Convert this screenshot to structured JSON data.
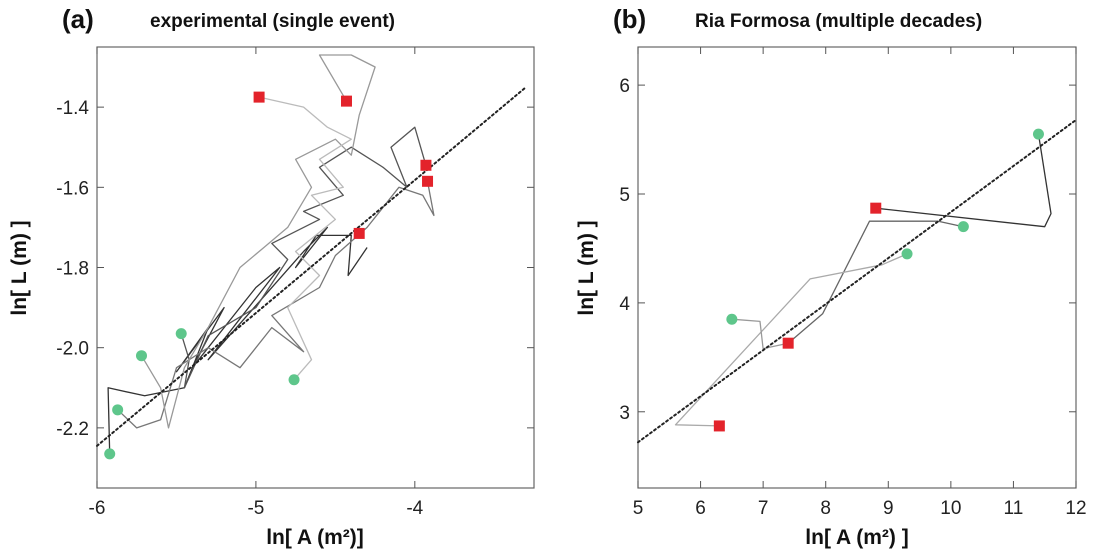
{
  "chart_data": [
    {
      "type": "scatter",
      "panel_label": "(a)",
      "title": "experimental (single event)",
      "xlabel": "ln[ A (m²)]",
      "ylabel": "ln[ L (m) ]",
      "xlim": [
        -6.0,
        -3.25
      ],
      "ylim": [
        -2.35,
        -1.25
      ],
      "xticks": [
        -6,
        -5,
        -4
      ],
      "yticks": [
        -2.2,
        -2.0,
        -1.8,
        -1.6,
        -1.4
      ],
      "xtick_labels": [
        "-6",
        "-5",
        "-4"
      ],
      "ytick_labels": [
        "-2.2",
        "-2.0",
        "-1.8",
        "-1.6",
        "-1.4"
      ],
      "grid": false,
      "fit_line": {
        "style": "dotted",
        "points": [
          [
            -6.0,
            -2.245
          ],
          [
            -3.3,
            -1.35
          ]
        ]
      },
      "start_points": {
        "marker": "circle",
        "color": "#5ec68b",
        "x": [
          -5.92,
          -5.87,
          -5.72,
          -5.47,
          -4.76
        ],
        "y": [
          -2.265,
          -2.155,
          -2.02,
          -1.965,
          -2.08
        ]
      },
      "end_points": {
        "marker": "square",
        "color": "#e3232b",
        "x": [
          -4.98,
          -4.43,
          -4.35,
          -3.93,
          -3.92
        ],
        "y": [
          -1.375,
          -1.385,
          -1.715,
          -1.545,
          -1.585
        ]
      },
      "trajectories": [
        {
          "color": "#333333",
          "points": [
            [
              -5.92,
              -2.265
            ],
            [
              -5.93,
              -2.1
            ],
            [
              -5.7,
              -2.12
            ],
            [
              -5.45,
              -2.1
            ],
            [
              -5.3,
              -1.95
            ],
            [
              -5.5,
              -2.06
            ],
            [
              -5.2,
              -1.9
            ],
            [
              -5.4,
              -2.05
            ],
            [
              -5.0,
              -1.85
            ],
            [
              -4.85,
              -1.8
            ],
            [
              -5.3,
              -2.03
            ],
            [
              -4.7,
              -1.76
            ],
            [
              -4.55,
              -1.7
            ],
            [
              -4.75,
              -1.8
            ],
            [
              -4.62,
              -1.72
            ],
            [
              -4.4,
              -1.72
            ],
            [
              -4.42,
              -1.82
            ],
            [
              -4.3,
              -1.75
            ]
          ]
        },
        {
          "color": "#555555",
          "points": [
            [
              -5.47,
              -1.965
            ],
            [
              -5.42,
              -2.03
            ],
            [
              -5.45,
              -2.1
            ],
            [
              -5.3,
              -1.97
            ],
            [
              -5.0,
              -1.9
            ],
            [
              -4.8,
              -1.78
            ],
            [
              -4.9,
              -1.74
            ],
            [
              -4.6,
              -1.68
            ],
            [
              -4.7,
              -1.66
            ],
            [
              -4.45,
              -1.62
            ],
            [
              -4.6,
              -1.55
            ],
            [
              -4.4,
              -1.5
            ],
            [
              -4.2,
              -1.55
            ],
            [
              -4.05,
              -1.6
            ],
            [
              -4.15,
              -1.5
            ],
            [
              -4.0,
              -1.45
            ],
            [
              -3.93,
              -1.545
            ]
          ]
        },
        {
          "color": "#777777",
          "points": [
            [
              -5.87,
              -2.155
            ],
            [
              -5.75,
              -2.2
            ],
            [
              -5.6,
              -2.18
            ],
            [
              -5.5,
              -2.05
            ],
            [
              -5.3,
              -2.0
            ],
            [
              -5.1,
              -2.05
            ],
            [
              -4.9,
              -1.95
            ],
            [
              -4.7,
              -2.01
            ],
            [
              -4.9,
              -1.92
            ],
            [
              -4.6,
              -1.85
            ],
            [
              -4.5,
              -1.77
            ],
            [
              -4.3,
              -1.7
            ],
            [
              -4.2,
              -1.65
            ],
            [
              -4.1,
              -1.6
            ],
            [
              -3.95,
              -1.62
            ],
            [
              -3.88,
              -1.67
            ],
            [
              -3.92,
              -1.585
            ]
          ]
        },
        {
          "color": "#999999",
          "points": [
            [
              -5.72,
              -2.02
            ],
            [
              -5.6,
              -2.1
            ],
            [
              -5.55,
              -2.2
            ],
            [
              -5.45,
              -2.05
            ],
            [
              -5.3,
              -1.95
            ],
            [
              -5.1,
              -1.8
            ],
            [
              -4.95,
              -1.75
            ],
            [
              -4.8,
              -1.7
            ],
            [
              -4.65,
              -1.6
            ],
            [
              -4.75,
              -1.53
            ],
            [
              -4.5,
              -1.48
            ],
            [
              -4.4,
              -1.52
            ],
            [
              -4.35,
              -1.42
            ],
            [
              -4.25,
              -1.3
            ],
            [
              -4.4,
              -1.27
            ],
            [
              -4.6,
              -1.27
            ],
            [
              -4.43,
              -1.385
            ]
          ]
        },
        {
          "color": "#bbbbbb",
          "points": [
            [
              -4.76,
              -2.08
            ],
            [
              -4.65,
              -2.03
            ],
            [
              -4.8,
              -1.9
            ],
            [
              -4.6,
              -1.82
            ],
            [
              -4.75,
              -1.76
            ],
            [
              -4.5,
              -1.68
            ],
            [
              -4.65,
              -1.62
            ],
            [
              -4.45,
              -1.6
            ],
            [
              -4.6,
              -1.53
            ],
            [
              -4.4,
              -1.48
            ],
            [
              -4.55,
              -1.45
            ],
            [
              -4.7,
              -1.4
            ],
            [
              -4.98,
              -1.375
            ]
          ]
        }
      ]
    },
    {
      "type": "scatter",
      "panel_label": "(b)",
      "title": "Ria Formosa (multiple decades)",
      "xlabel": "ln[ A (m²) ]",
      "ylabel": "ln[ L (m) ]",
      "xlim": [
        5,
        12
      ],
      "ylim": [
        2.3,
        6.35
      ],
      "xticks": [
        5,
        6,
        7,
        8,
        9,
        10,
        11,
        12
      ],
      "yticks": [
        3,
        4,
        5,
        6
      ],
      "xtick_labels": [
        "5",
        "6",
        "7",
        "8",
        "9",
        "10",
        "11",
        "12"
      ],
      "ytick_labels": [
        "3",
        "4",
        "5",
        "6"
      ],
      "grid": false,
      "fit_line": {
        "style": "dotted",
        "points": [
          [
            5.0,
            2.72
          ],
          [
            12.0,
            5.68
          ]
        ]
      },
      "start_points": {
        "marker": "circle",
        "color": "#5ec68b",
        "x": [
          6.5,
          9.3,
          10.2,
          11.4
        ],
        "y": [
          3.85,
          4.45,
          4.7,
          5.55
        ]
      },
      "end_points": {
        "marker": "square",
        "color": "#e3232b",
        "x": [
          6.3,
          7.4,
          8.8
        ],
        "y": [
          2.87,
          3.63,
          4.87
        ]
      },
      "trajectories": [
        {
          "color": "#333333",
          "points": [
            [
              11.4,
              5.55
            ],
            [
              11.6,
              4.82
            ],
            [
              11.5,
              4.7
            ],
            [
              8.8,
              4.87
            ]
          ]
        },
        {
          "color": "#666666",
          "points": [
            [
              10.2,
              4.7
            ],
            [
              9.8,
              4.75
            ],
            [
              8.7,
              4.75
            ],
            [
              7.95,
              3.9
            ],
            [
              7.4,
              3.63
            ]
          ]
        },
        {
          "color": "#aaaaaa",
          "points": [
            [
              9.3,
              4.45
            ],
            [
              8.9,
              4.35
            ],
            [
              7.75,
              4.22
            ],
            [
              5.6,
              2.88
            ],
            [
              6.3,
              2.87
            ]
          ]
        },
        {
          "color": "#999999",
          "points": [
            [
              6.5,
              3.85
            ],
            [
              6.95,
              3.83
            ],
            [
              7.0,
              3.58
            ],
            [
              7.4,
              3.63
            ]
          ]
        }
      ]
    }
  ]
}
